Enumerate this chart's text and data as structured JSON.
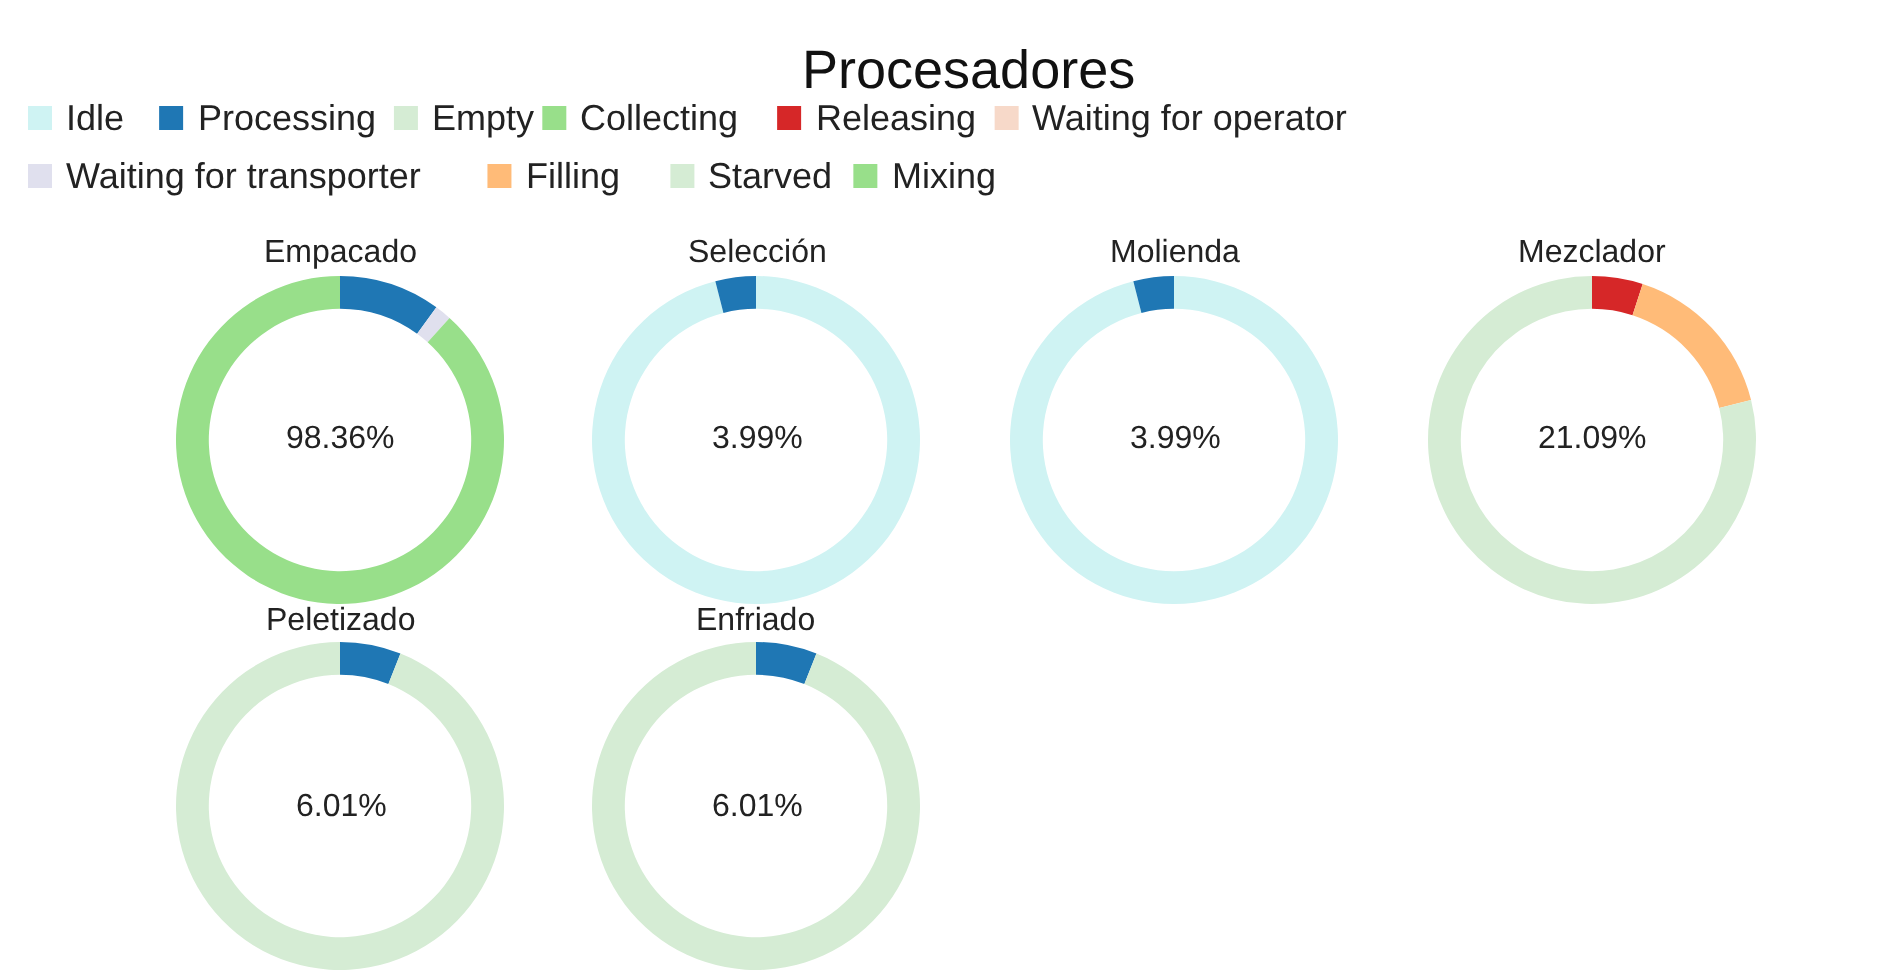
{
  "chart_data": {
    "type": "donut",
    "title": "Procesadores",
    "legend": "top",
    "categories": [
      "Idle",
      "Processing",
      "Empty",
      "Collecting",
      "Releasing",
      "Waiting for operator",
      "Waiting for transporter",
      "Filling",
      "Starved",
      "Mixing"
    ],
    "colors": [
      "#cff3f3",
      "#1f77b4",
      "#d5ecd4",
      "#98df8a",
      "#d62728",
      "#f7d9c9",
      "#e0e0ee",
      "#ffbb78",
      "#d5ecd4",
      "#98df8a"
    ],
    "series": [
      {
        "name": "Empacado",
        "values": [
          0,
          10,
          0,
          0,
          0,
          0,
          1.64,
          0,
          0,
          88.36
        ]
      },
      {
        "name": "Selección",
        "values": [
          96.01,
          3.99,
          0,
          0,
          0,
          0,
          0,
          0,
          0,
          0
        ]
      },
      {
        "name": "Molienda",
        "values": [
          96.01,
          3.99,
          0,
          0,
          0,
          0,
          0,
          0,
          0,
          0
        ]
      },
      {
        "name": "Mezclador",
        "values": [
          0,
          0,
          0,
          0,
          5,
          0,
          0,
          16.09,
          78.91,
          0
        ]
      },
      {
        "name": "Peletizado",
        "values": [
          0,
          6.01,
          0,
          0,
          0,
          0,
          0,
          0,
          93.99,
          0
        ]
      },
      {
        "name": "Enfriado",
        "values": [
          0,
          6.01,
          0,
          0,
          0,
          0,
          0,
          0,
          93.99,
          0
        ]
      }
    ],
    "annotations": [
      "98.36%",
      "3.99%",
      "3.99%",
      "21.09%",
      "6.01%",
      "6.01%"
    ]
  }
}
